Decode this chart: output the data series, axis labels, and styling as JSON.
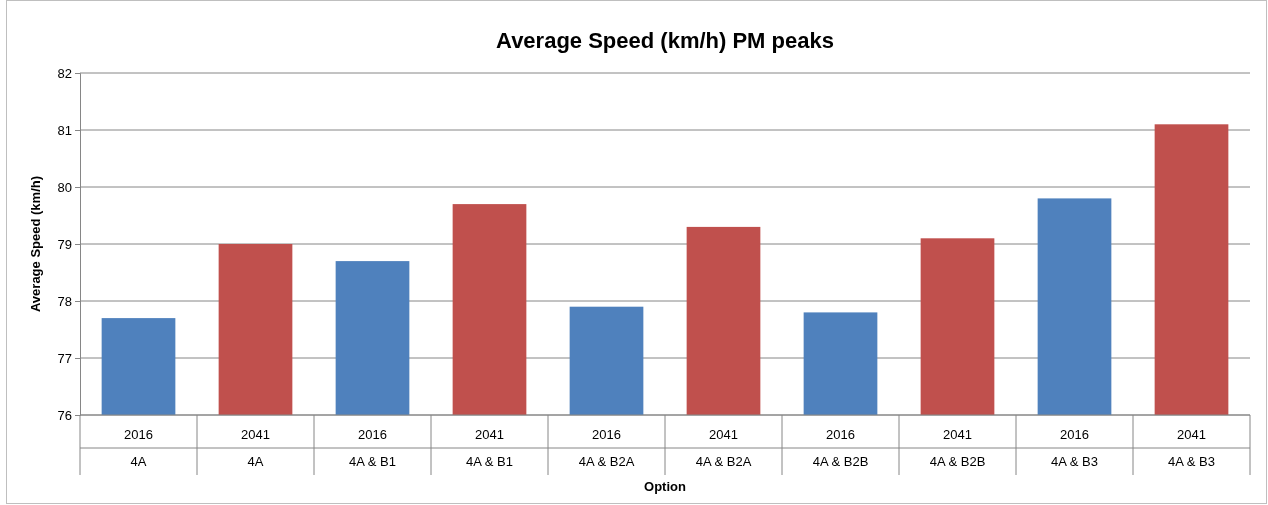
{
  "chart_data": {
    "type": "bar",
    "title": "Average Speed (km/h) PM peaks",
    "xlabel": "Option",
    "ylabel": "Average Speed (km/h)",
    "categories": [
      "2016\n4A",
      "2041\n4A",
      "2016\n4A & B1",
      "2041\n4A & B1",
      "2016\n4A & B2A",
      "2041\n4A & B2A",
      "2016\n4A & B2B",
      "2041\n4A & B2B",
      "2016\n4A & B3",
      "2041\n4A & B3"
    ],
    "values": [
      77.7,
      79.0,
      78.7,
      79.7,
      77.9,
      79.3,
      77.8,
      79.1,
      79.8,
      81.1
    ],
    "colors": [
      "#4f81bd",
      "#c0504d",
      "#4f81bd",
      "#c0504d",
      "#4f81bd",
      "#c0504d",
      "#4f81bd",
      "#c0504d",
      "#4f81bd",
      "#c0504d"
    ],
    "ylim": [
      76,
      82
    ],
    "yticks": [
      76,
      77,
      78,
      79,
      80,
      81,
      82
    ],
    "grid": "y"
  }
}
